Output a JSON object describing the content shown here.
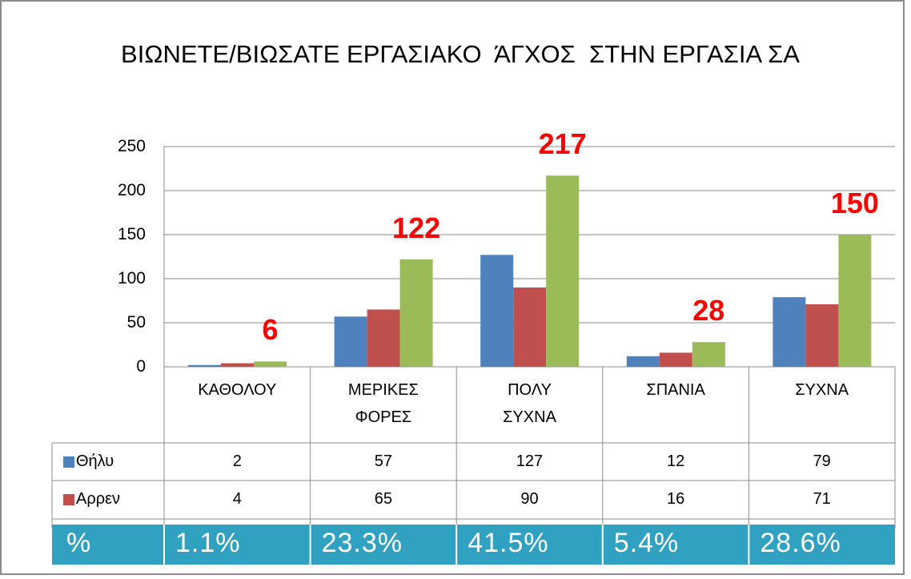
{
  "chart_data": {
    "type": "bar",
    "title": "ΒΙΩΝΕΤΕ/ΒΙΩΣΑΤΕ ΕΡΓΑΣΙΑΚΟ  ΆΓΧΟΣ  ΣΤΗΝ ΕΡΓΑΣΙΑ ΣΑ",
    "categories": [
      "ΚΑΘΟΛΟΥ",
      "ΜΕΡΙΚΕΣ ΦΟΡΕΣ",
      "ΠΟΛΥ ΣΥΧΝΑ",
      "ΣΠΑΝΙΑ",
      "ΣΥΧΝΑ"
    ],
    "series": [
      {
        "name": "Θήλυ",
        "color": "#4f81bd",
        "values": [
          2,
          57,
          127,
          12,
          79
        ]
      },
      {
        "name": "Αρρεν",
        "color": "#c0504d",
        "values": [
          4,
          65,
          90,
          16,
          71
        ]
      },
      {
        "color": "#9bbb59",
        "values": [
          6,
          122,
          217,
          28,
          150
        ],
        "data_labels": true,
        "label_color": "#ff0000"
      }
    ],
    "ylim": [
      0,
      250
    ],
    "yticks": [
      0,
      50,
      100,
      150,
      200,
      250
    ],
    "grid": true
  },
  "percent_row": {
    "label": "%",
    "values": [
      "1.1%",
      "23.3%",
      "41.5%",
      "5.4%",
      "28.6%"
    ],
    "color": "#31a1c1"
  }
}
